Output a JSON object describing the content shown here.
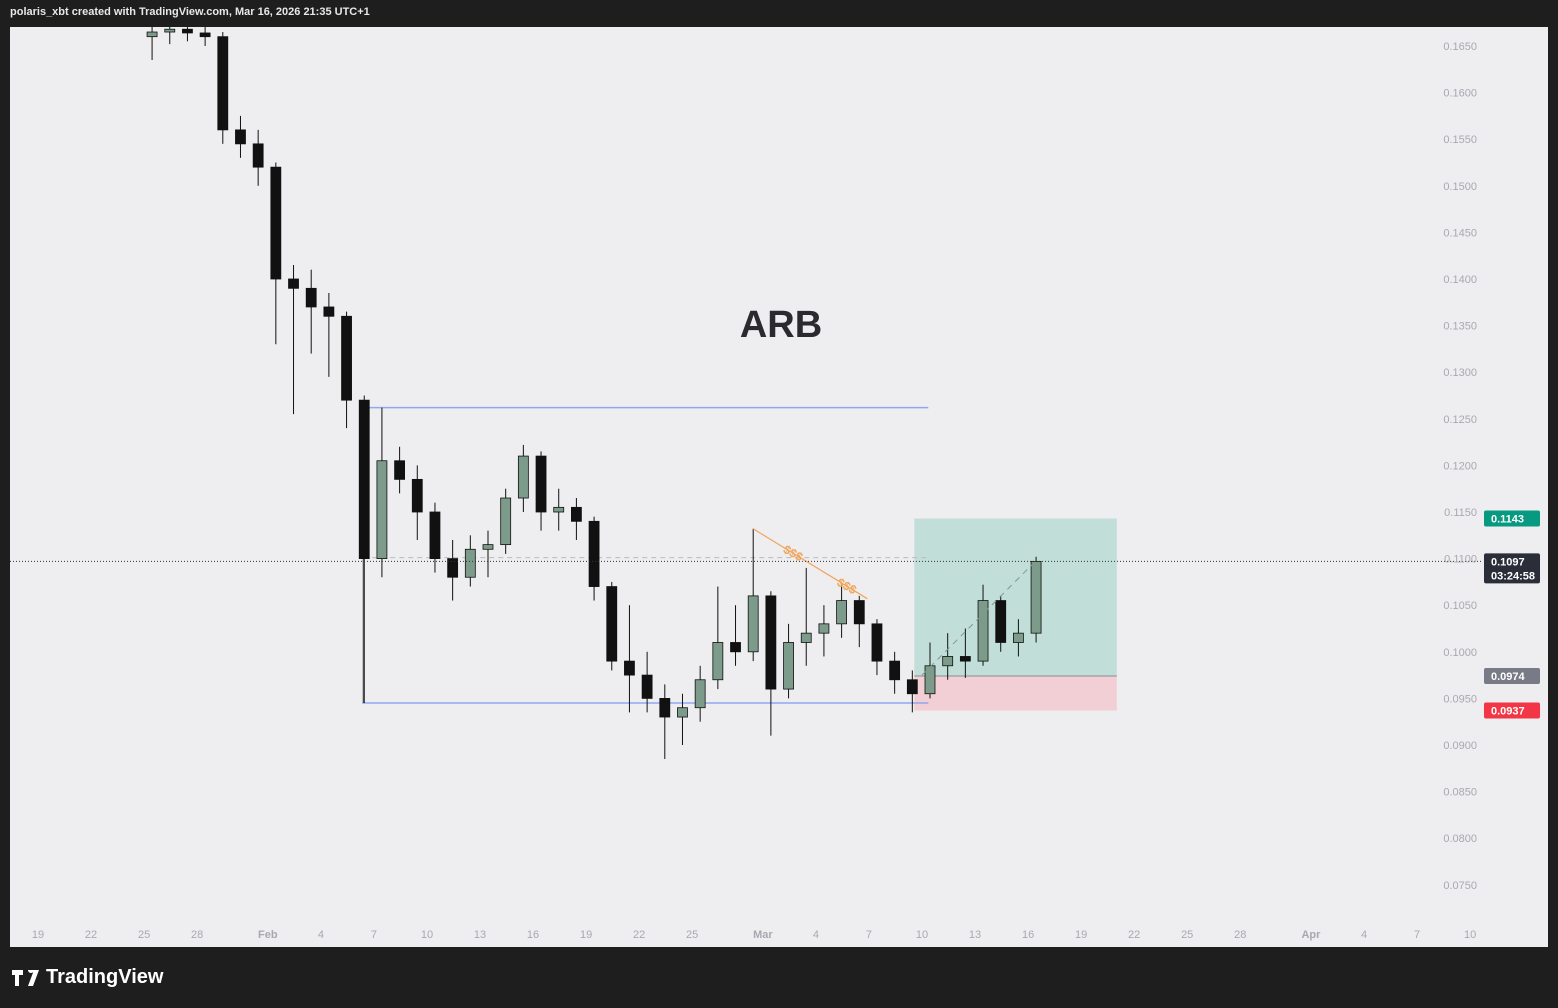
{
  "header": {
    "attribution": "polaris_xbt created with TradingView.com, Mar 16, 2026 21:35 UTC+1"
  },
  "footer": {
    "logo": "TradingView",
    "logo_icon": "tradingview-logo-icon"
  },
  "chart_data": {
    "type": "candlestick",
    "title": "ARB",
    "x_tick_labels": [
      "19",
      "22",
      "25",
      "28",
      "Feb",
      "4",
      "7",
      "10",
      "13",
      "16",
      "19",
      "22",
      "25",
      "Mar",
      "4",
      "7",
      "10",
      "13",
      "16",
      "19",
      "22",
      "25",
      "28",
      "Apr",
      "4",
      "7",
      "10"
    ],
    "x_range": [
      "2026-01-19",
      "2026-04-10"
    ],
    "y_ticks": [
      0.165,
      0.16,
      0.155,
      0.15,
      0.145,
      0.14,
      0.135,
      0.13,
      0.125,
      0.12,
      0.115,
      0.11,
      0.105,
      0.1,
      0.095,
      0.09,
      0.085,
      0.08,
      0.075
    ],
    "ylim": [
      0.0715,
      0.167
    ],
    "grid": false,
    "colors": {
      "up": "#7d9b8a",
      "down": "#111111",
      "profit_zone": "#b8dcd3",
      "loss_zone": "#f1cfd5",
      "level_line": "#8fa8ef",
      "trendline": "#f0a55a",
      "target_tag": "#089981",
      "stop_tag": "#f23645",
      "entry_tag": "#787b86",
      "last_tag": "#2a2e39"
    },
    "candles": [
      [
        "2026-01-25",
        0.166,
        0.1672,
        0.1635,
        0.1665
      ],
      [
        "2026-01-26",
        0.1665,
        0.1672,
        0.1652,
        0.1668
      ],
      [
        "2026-01-27",
        0.1668,
        0.1672,
        0.1655,
        0.1664
      ],
      [
        "2026-01-28",
        0.1664,
        0.1672,
        0.165,
        0.166
      ],
      [
        "2026-01-29",
        0.166,
        0.1665,
        0.1545,
        0.156
      ],
      [
        "2026-01-30",
        0.156,
        0.1575,
        0.153,
        0.1545
      ],
      [
        "2026-01-31",
        0.1545,
        0.156,
        0.15,
        0.152
      ],
      [
        "2026-02-01",
        0.152,
        0.1525,
        0.133,
        0.14
      ],
      [
        "2026-02-02",
        0.14,
        0.1415,
        0.1255,
        0.139
      ],
      [
        "2026-02-03",
        0.139,
        0.141,
        0.132,
        0.137
      ],
      [
        "2026-02-04",
        0.137,
        0.1385,
        0.1295,
        0.136
      ],
      [
        "2026-02-05",
        0.136,
        0.1365,
        0.124,
        0.127
      ],
      [
        "2026-02-06",
        0.127,
        0.1275,
        0.0945,
        0.11
      ],
      [
        "2026-02-07",
        0.11,
        0.1262,
        0.108,
        0.1205
      ],
      [
        "2026-02-08",
        0.1205,
        0.122,
        0.117,
        0.1185
      ],
      [
        "2026-02-09",
        0.1185,
        0.12,
        0.112,
        0.115
      ],
      [
        "2026-02-10",
        0.115,
        0.116,
        0.1085,
        0.11
      ],
      [
        "2026-02-11",
        0.11,
        0.112,
        0.1055,
        0.108
      ],
      [
        "2026-02-12",
        0.108,
        0.1125,
        0.107,
        0.111
      ],
      [
        "2026-02-13",
        0.111,
        0.113,
        0.108,
        0.1115
      ],
      [
        "2026-02-14",
        0.1115,
        0.1175,
        0.1105,
        0.1165
      ],
      [
        "2026-02-15",
        0.1165,
        0.1222,
        0.115,
        0.121
      ],
      [
        "2026-02-16",
        0.121,
        0.1215,
        0.113,
        0.115
      ],
      [
        "2026-02-17",
        0.115,
        0.1175,
        0.113,
        0.1155
      ],
      [
        "2026-02-18",
        0.1155,
        0.1165,
        0.112,
        0.114
      ],
      [
        "2026-02-19",
        0.114,
        0.1145,
        0.1055,
        0.107
      ],
      [
        "2026-02-20",
        0.107,
        0.1075,
        0.098,
        0.099
      ],
      [
        "2026-02-21",
        0.099,
        0.105,
        0.0935,
        0.0975
      ],
      [
        "2026-02-22",
        0.0975,
        0.1,
        0.0935,
        0.095
      ],
      [
        "2026-02-23",
        0.095,
        0.0965,
        0.0885,
        0.093
      ],
      [
        "2026-02-24",
        0.093,
        0.0955,
        0.09,
        0.094
      ],
      [
        "2026-02-25",
        0.094,
        0.0985,
        0.0925,
        0.097
      ],
      [
        "2026-02-26",
        0.097,
        0.107,
        0.096,
        0.101
      ],
      [
        "2026-02-27",
        0.101,
        0.105,
        0.0985,
        0.1
      ],
      [
        "2026-02-28",
        0.1,
        0.1132,
        0.099,
        0.106
      ],
      [
        "2026-03-01",
        0.106,
        0.1065,
        0.091,
        0.096
      ],
      [
        "2026-03-02",
        0.096,
        0.103,
        0.095,
        0.101
      ],
      [
        "2026-03-03",
        0.101,
        0.109,
        0.0985,
        0.102
      ],
      [
        "2026-03-04",
        0.102,
        0.105,
        0.0995,
        0.103
      ],
      [
        "2026-03-05",
        0.103,
        0.1072,
        0.1015,
        0.1055
      ],
      [
        "2026-03-06",
        0.1055,
        0.106,
        0.1005,
        0.103
      ],
      [
        "2026-03-07",
        0.103,
        0.1035,
        0.0975,
        0.099
      ],
      [
        "2026-03-08",
        0.099,
        0.1,
        0.0955,
        0.097
      ],
      [
        "2026-03-09",
        0.097,
        0.098,
        0.0935,
        0.0955
      ],
      [
        "2026-03-10",
        0.0955,
        0.101,
        0.095,
        0.0985
      ],
      [
        "2026-03-11",
        0.0985,
        0.102,
        0.097,
        0.0995
      ],
      [
        "2026-03-12",
        0.0995,
        0.1025,
        0.0972,
        0.099
      ],
      [
        "2026-03-13",
        0.099,
        0.1072,
        0.0985,
        0.1055
      ],
      [
        "2026-03-14",
        0.1055,
        0.106,
        0.1,
        0.101
      ],
      [
        "2026-03-15",
        0.101,
        0.1035,
        0.0995,
        0.102
      ],
      [
        "2026-03-16",
        0.102,
        0.1102,
        0.101,
        0.1097
      ]
    ],
    "levels": [
      {
        "price": 0.1262,
        "from": "2026-02-06",
        "to": "2026-03-09"
      },
      {
        "price": 0.0945,
        "from": "2026-02-06",
        "to": "2026-03-09"
      }
    ],
    "trendline": {
      "from": [
        "2026-02-28",
        0.1132
      ],
      "to": [
        "2026-03-06",
        0.1057
      ],
      "labels": [
        "$$$",
        "$$$"
      ]
    },
    "long_position": {
      "from": "2026-03-09",
      "to": "2026-03-20",
      "entry": 0.0974,
      "target": 0.1143,
      "stop": 0.0937
    },
    "price_tags": {
      "target": "0.1143",
      "last": "0.1097",
      "countdown": "03:24:58",
      "entry": "0.0974",
      "stop": "0.0937"
    }
  }
}
